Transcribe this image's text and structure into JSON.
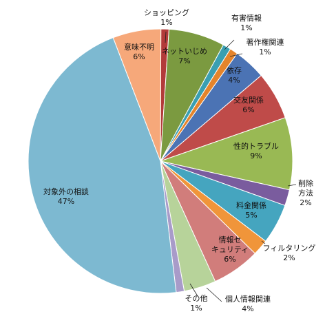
{
  "chart_data": {
    "type": "pie",
    "title": "",
    "slices": [
      {
        "label": "ショッピング",
        "value": 1,
        "value_label": "1%",
        "color": "#B23B3A"
      },
      {
        "label": "ネットいじめ",
        "value": 7,
        "value_label": "7%",
        "color": "#7B9A40"
      },
      {
        "label": "有害情報",
        "value": 1,
        "value_label": "1%",
        "color": "#3A9FB2"
      },
      {
        "label": "著作権関連",
        "value": 1,
        "value_label": "1%",
        "color": "#E5842B"
      },
      {
        "label": "依存",
        "value": 4,
        "value_label": "4%",
        "color": "#4B73B4"
      },
      {
        "label": "交友関係",
        "value": 6,
        "value_label": "6%",
        "color": "#BF4B49"
      },
      {
        "label": "性的トラブル",
        "value": 9,
        "value_label": "9%",
        "color": "#99B954"
      },
      {
        "label": "削除方法",
        "value": 2,
        "value_label": "2%",
        "color": "#7A5C9E"
      },
      {
        "label": "料金関係",
        "value": 5,
        "value_label": "5%",
        "color": "#45A5BF"
      },
      {
        "label": "フィルタリング",
        "value": 2,
        "value_label": "2%",
        "color": "#F0953A"
      },
      {
        "label": "情報セキュリティ",
        "value": 6,
        "value_label": "6%",
        "color": "#D17D7B"
      },
      {
        "label": "個人情報関連",
        "value": 4,
        "value_label": "4%",
        "color": "#B7D39A"
      },
      {
        "label": "その他",
        "value": 1,
        "value_label": "1%",
        "color": "#A89BC9"
      },
      {
        "label": "対象外の相談",
        "value": 47,
        "value_label": "47%",
        "color": "#7DB9D1"
      },
      {
        "label": "意味不明",
        "value": 6,
        "value_label": "6%",
        "color": "#F6A87A"
      }
    ]
  }
}
